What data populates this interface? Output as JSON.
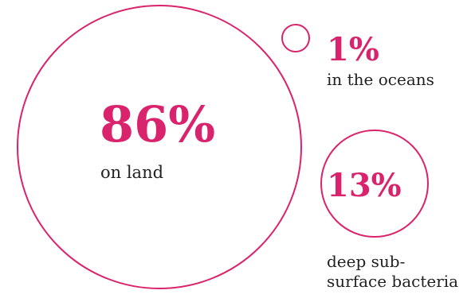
{
  "colors": {
    "accent": "#d9236c",
    "text": "#222222",
    "background": "#ffffff"
  },
  "chart_data": {
    "type": "bubble",
    "title": "",
    "unit": "%",
    "items": [
      {
        "key": "land",
        "value": 86,
        "value_label": "86%",
        "caption": [
          "on land"
        ]
      },
      {
        "key": "oceans",
        "value": 1,
        "value_label": "1%",
        "caption": [
          "in the oceans"
        ]
      },
      {
        "key": "deep",
        "value": 13,
        "value_label": "13%",
        "caption": [
          "deep sub-",
          "surface bacteria"
        ]
      }
    ]
  }
}
